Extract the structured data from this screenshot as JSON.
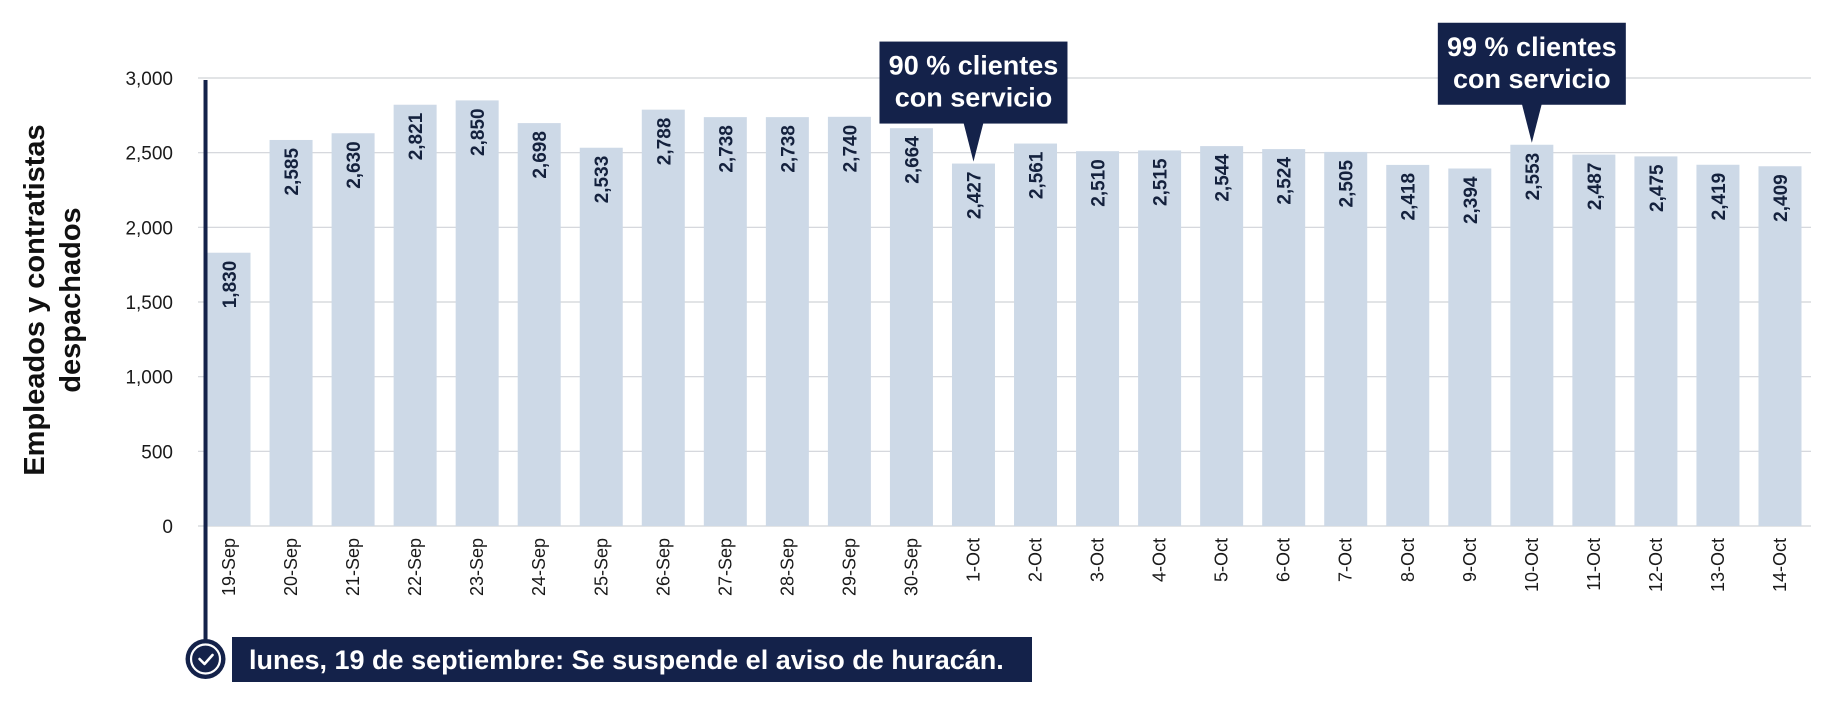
{
  "chart_data": {
    "type": "bar",
    "ylabel_lines": [
      "Empleados y contratistas",
      "despachados"
    ],
    "xlabel": "",
    "ylim": [
      0,
      3000
    ],
    "yticks": [
      0,
      500,
      1000,
      1500,
      2000,
      2500,
      3000
    ],
    "ytick_labels": [
      "0",
      "500",
      "1,000",
      "1,500",
      "2,000",
      "2,500",
      "3,000"
    ],
    "grid": true,
    "categories": [
      "19-Sep",
      "20-Sep",
      "21-Sep",
      "22-Sep",
      "23-Sep",
      "24-Sep",
      "25-Sep",
      "26-Sep",
      "27-Sep",
      "28-Sep",
      "29-Sep",
      "30-Sep",
      "1-Oct",
      "2-Oct",
      "3-Oct",
      "4-Oct",
      "5-Oct",
      "6-Oct",
      "7-Oct",
      "8-Oct",
      "9-Oct",
      "10-Oct",
      "11-Oct",
      "12-Oct",
      "13-Oct",
      "14-Oct"
    ],
    "values": [
      1830,
      2585,
      2630,
      2821,
      2850,
      2698,
      2533,
      2788,
      2738,
      2738,
      2740,
      2664,
      2427,
      2561,
      2510,
      2515,
      2544,
      2524,
      2505,
      2418,
      2394,
      2553,
      2487,
      2475,
      2419,
      2409
    ],
    "value_labels": [
      "1,830",
      "2,585",
      "2,630",
      "2,821",
      "2,850",
      "2,698",
      "2,533",
      "2,788",
      "2,738",
      "2,738",
      "2,740",
      "2,664",
      "2,427",
      "2,561",
      "2,510",
      "2,515",
      "2,544",
      "2,524",
      "2,505",
      "2,418",
      "2,394",
      "2,553",
      "2,487",
      "2,475",
      "2,419",
      "2,409"
    ],
    "annotations": [
      {
        "category": "1-Oct",
        "lines": [
          "90 % clientes",
          "con servicio"
        ]
      },
      {
        "category": "10-Oct",
        "lines": [
          "99 % clientes",
          "con servicio"
        ]
      }
    ],
    "event_note": {
      "category": "19-Sep",
      "text": "lunes, 19 de septiembre: Se suspende el aviso de huracán."
    }
  },
  "colors": {
    "bar": "#cdd9e7",
    "grid": "#d0d3d8",
    "navy": "#14224a"
  },
  "icons": {
    "event_marker": "check-circle-icon"
  }
}
